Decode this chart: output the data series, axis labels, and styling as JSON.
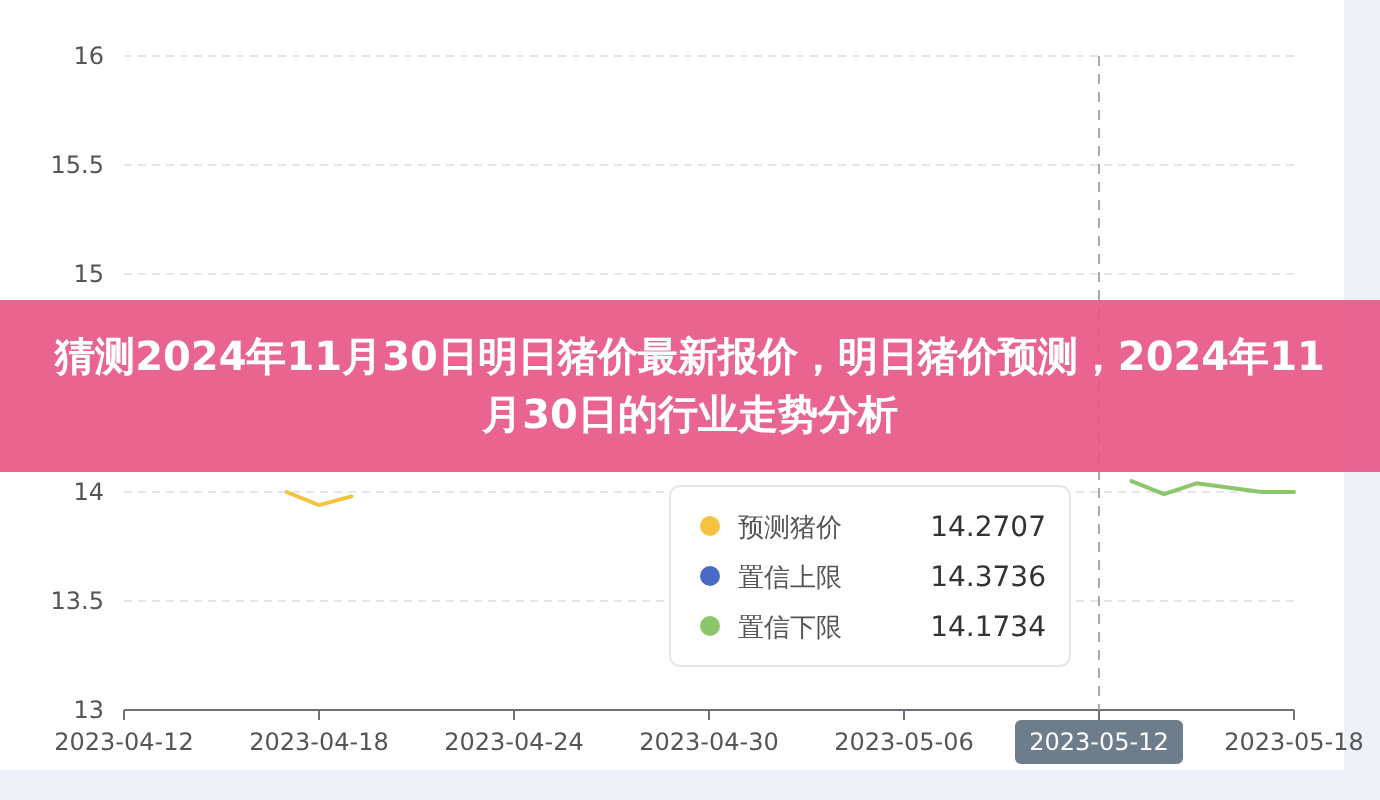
{
  "chart_data": {
    "type": "line",
    "title": "猜测2024年11月30日明日猪价最新报价，明日猪价预测，2024年11月30日的行业走势分析",
    "ylim": [
      13,
      16
    ],
    "yticks": [
      13,
      13.5,
      14,
      15,
      15.5,
      16
    ],
    "xlim": [
      "2023-04-12",
      "2023-05-18"
    ],
    "xticks": [
      "2023-04-12",
      "2023-04-18",
      "2023-04-24",
      "2023-04-30",
      "2023-05-06",
      "2023-05-12",
      "2023-05-18"
    ],
    "grid": "y",
    "legend": "bottom",
    "marker": "none",
    "line_style": "solid",
    "ref_lines": [
      {
        "axis": "x",
        "value": "2023-05-12",
        "label": "2023-05-12",
        "line_style": "dashed",
        "color": "#aaaaaa"
      }
    ],
    "annotations": [
      "14.2707",
      "14.3736",
      "14.1734"
    ],
    "series": [
      {
        "name": "预测猪价",
        "color": "#f5c242",
        "x": [
          "2023-04-17",
          "2023-04-18",
          "2023-04-19"
        ],
        "values": [
          14.0,
          13.94,
          13.98
        ]
      },
      {
        "name": "置信上限",
        "color": "#4a6bc4"
      },
      {
        "name": "置信下限",
        "color": "#8cc66a",
        "x": [
          "2023-05-13",
          "2023-05-14",
          "2023-05-15",
          "2023-05-17",
          "2023-05-18"
        ],
        "values": [
          14.05,
          13.99,
          14.04,
          14.0,
          14.0
        ]
      }
    ]
  }
}
